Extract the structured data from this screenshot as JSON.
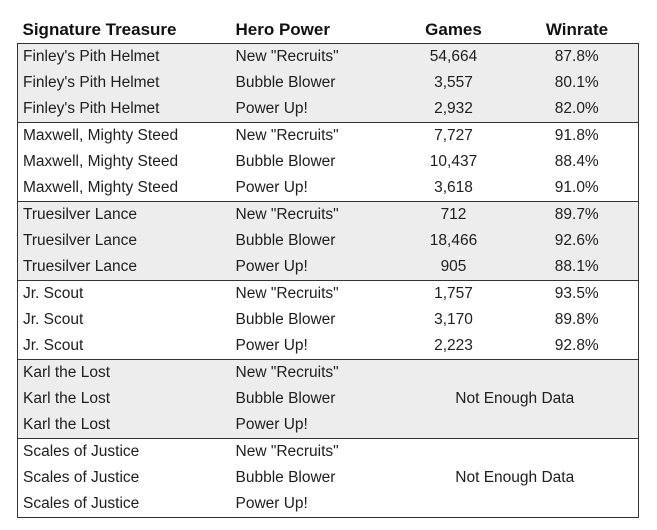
{
  "headers": [
    "Signature Treasure",
    "Hero Power",
    "Games",
    "Winrate"
  ],
  "groups": [
    {
      "shaded": true,
      "rows": [
        {
          "treasure": "Finley's Pith Helmet",
          "power": "New \"Recruits\"",
          "games": "54,664",
          "winrate": "87.8%"
        },
        {
          "treasure": "Finley's Pith Helmet",
          "power": "Bubble Blower",
          "games": "3,557",
          "winrate": "80.1%"
        },
        {
          "treasure": "Finley's Pith Helmet",
          "power": "Power Up!",
          "games": "2,932",
          "winrate": "82.0%"
        }
      ]
    },
    {
      "shaded": false,
      "rows": [
        {
          "treasure": "Maxwell, Mighty Steed",
          "power": "New \"Recruits\"",
          "games": "7,727",
          "winrate": "91.8%"
        },
        {
          "treasure": "Maxwell, Mighty Steed",
          "power": "Bubble Blower",
          "games": "10,437",
          "winrate": "88.4%"
        },
        {
          "treasure": "Maxwell, Mighty Steed",
          "power": "Power Up!",
          "games": "3,618",
          "winrate": "91.0%"
        }
      ]
    },
    {
      "shaded": true,
      "rows": [
        {
          "treasure": "Truesilver Lance",
          "power": "New \"Recruits\"",
          "games": "712",
          "winrate": "89.7%"
        },
        {
          "treasure": "Truesilver Lance",
          "power": "Bubble Blower",
          "games": "18,466",
          "winrate": "92.6%"
        },
        {
          "treasure": "Truesilver Lance",
          "power": "Power Up!",
          "games": "905",
          "winrate": "88.1%"
        }
      ]
    },
    {
      "shaded": false,
      "rows": [
        {
          "treasure": "Jr. Scout",
          "power": "New \"Recruits\"",
          "games": "1,757",
          "winrate": "93.5%"
        },
        {
          "treasure": "Jr. Scout",
          "power": "Bubble Blower",
          "games": "3,170",
          "winrate": "89.8%"
        },
        {
          "treasure": "Jr. Scout",
          "power": "Power Up!",
          "games": "2,223",
          "winrate": "92.8%"
        }
      ]
    },
    {
      "shaded": true,
      "no_data": "Not Enough Data",
      "rows": [
        {
          "treasure": "Karl the Lost",
          "power": "New \"Recruits\""
        },
        {
          "treasure": "Karl the Lost",
          "power": "Bubble Blower"
        },
        {
          "treasure": "Karl the Lost",
          "power": "Power Up!"
        }
      ]
    },
    {
      "shaded": false,
      "no_data": "Not Enough Data",
      "rows": [
        {
          "treasure": "Scales of Justice",
          "power": "New \"Recruits\""
        },
        {
          "treasure": "Scales of Justice",
          "power": "Bubble Blower"
        },
        {
          "treasure": "Scales of Justice",
          "power": "Power Up!"
        }
      ]
    }
  ]
}
